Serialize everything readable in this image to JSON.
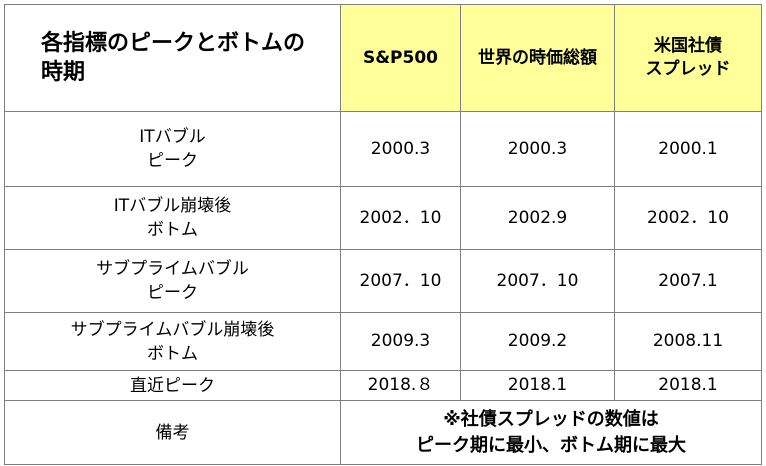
{
  "header": {
    "title_lines": [
      "各指標のピークとボトムの",
      "時期"
    ],
    "columns": [
      "S&P500",
      "世界の時価総額"
    ],
    "col3_lines": [
      "米国社債",
      "スプレッド"
    ]
  },
  "rows": [
    {
      "label_lines": [
        "ITバブル",
        "ピーク"
      ],
      "values": [
        "2000.3",
        "2000.3",
        "2000.1"
      ]
    },
    {
      "label_lines": [
        "ITバブル崩壊後",
        "ボトム"
      ],
      "values": [
        "2002．10",
        "2002.9",
        "2002．10"
      ]
    },
    {
      "label_lines": [
        "サブプライムバブル",
        "ピーク"
      ],
      "values": [
        "2007．10",
        "2007．10",
        "2007.1"
      ]
    },
    {
      "label_lines": [
        "サブプライムバブル崩壊後",
        "ボトム"
      ],
      "values": [
        "2009.3",
        "2009.2",
        "2008.11"
      ]
    },
    {
      "label_lines": [
        "直近ピーク"
      ],
      "values": [
        "2018.８",
        "2018.1",
        "2018.1"
      ]
    }
  ],
  "footer": {
    "label": "備考",
    "note_lines": [
      "※社債スプレッドの数値は",
      "ピーク期に最小、ボトム期に最大"
    ]
  }
}
